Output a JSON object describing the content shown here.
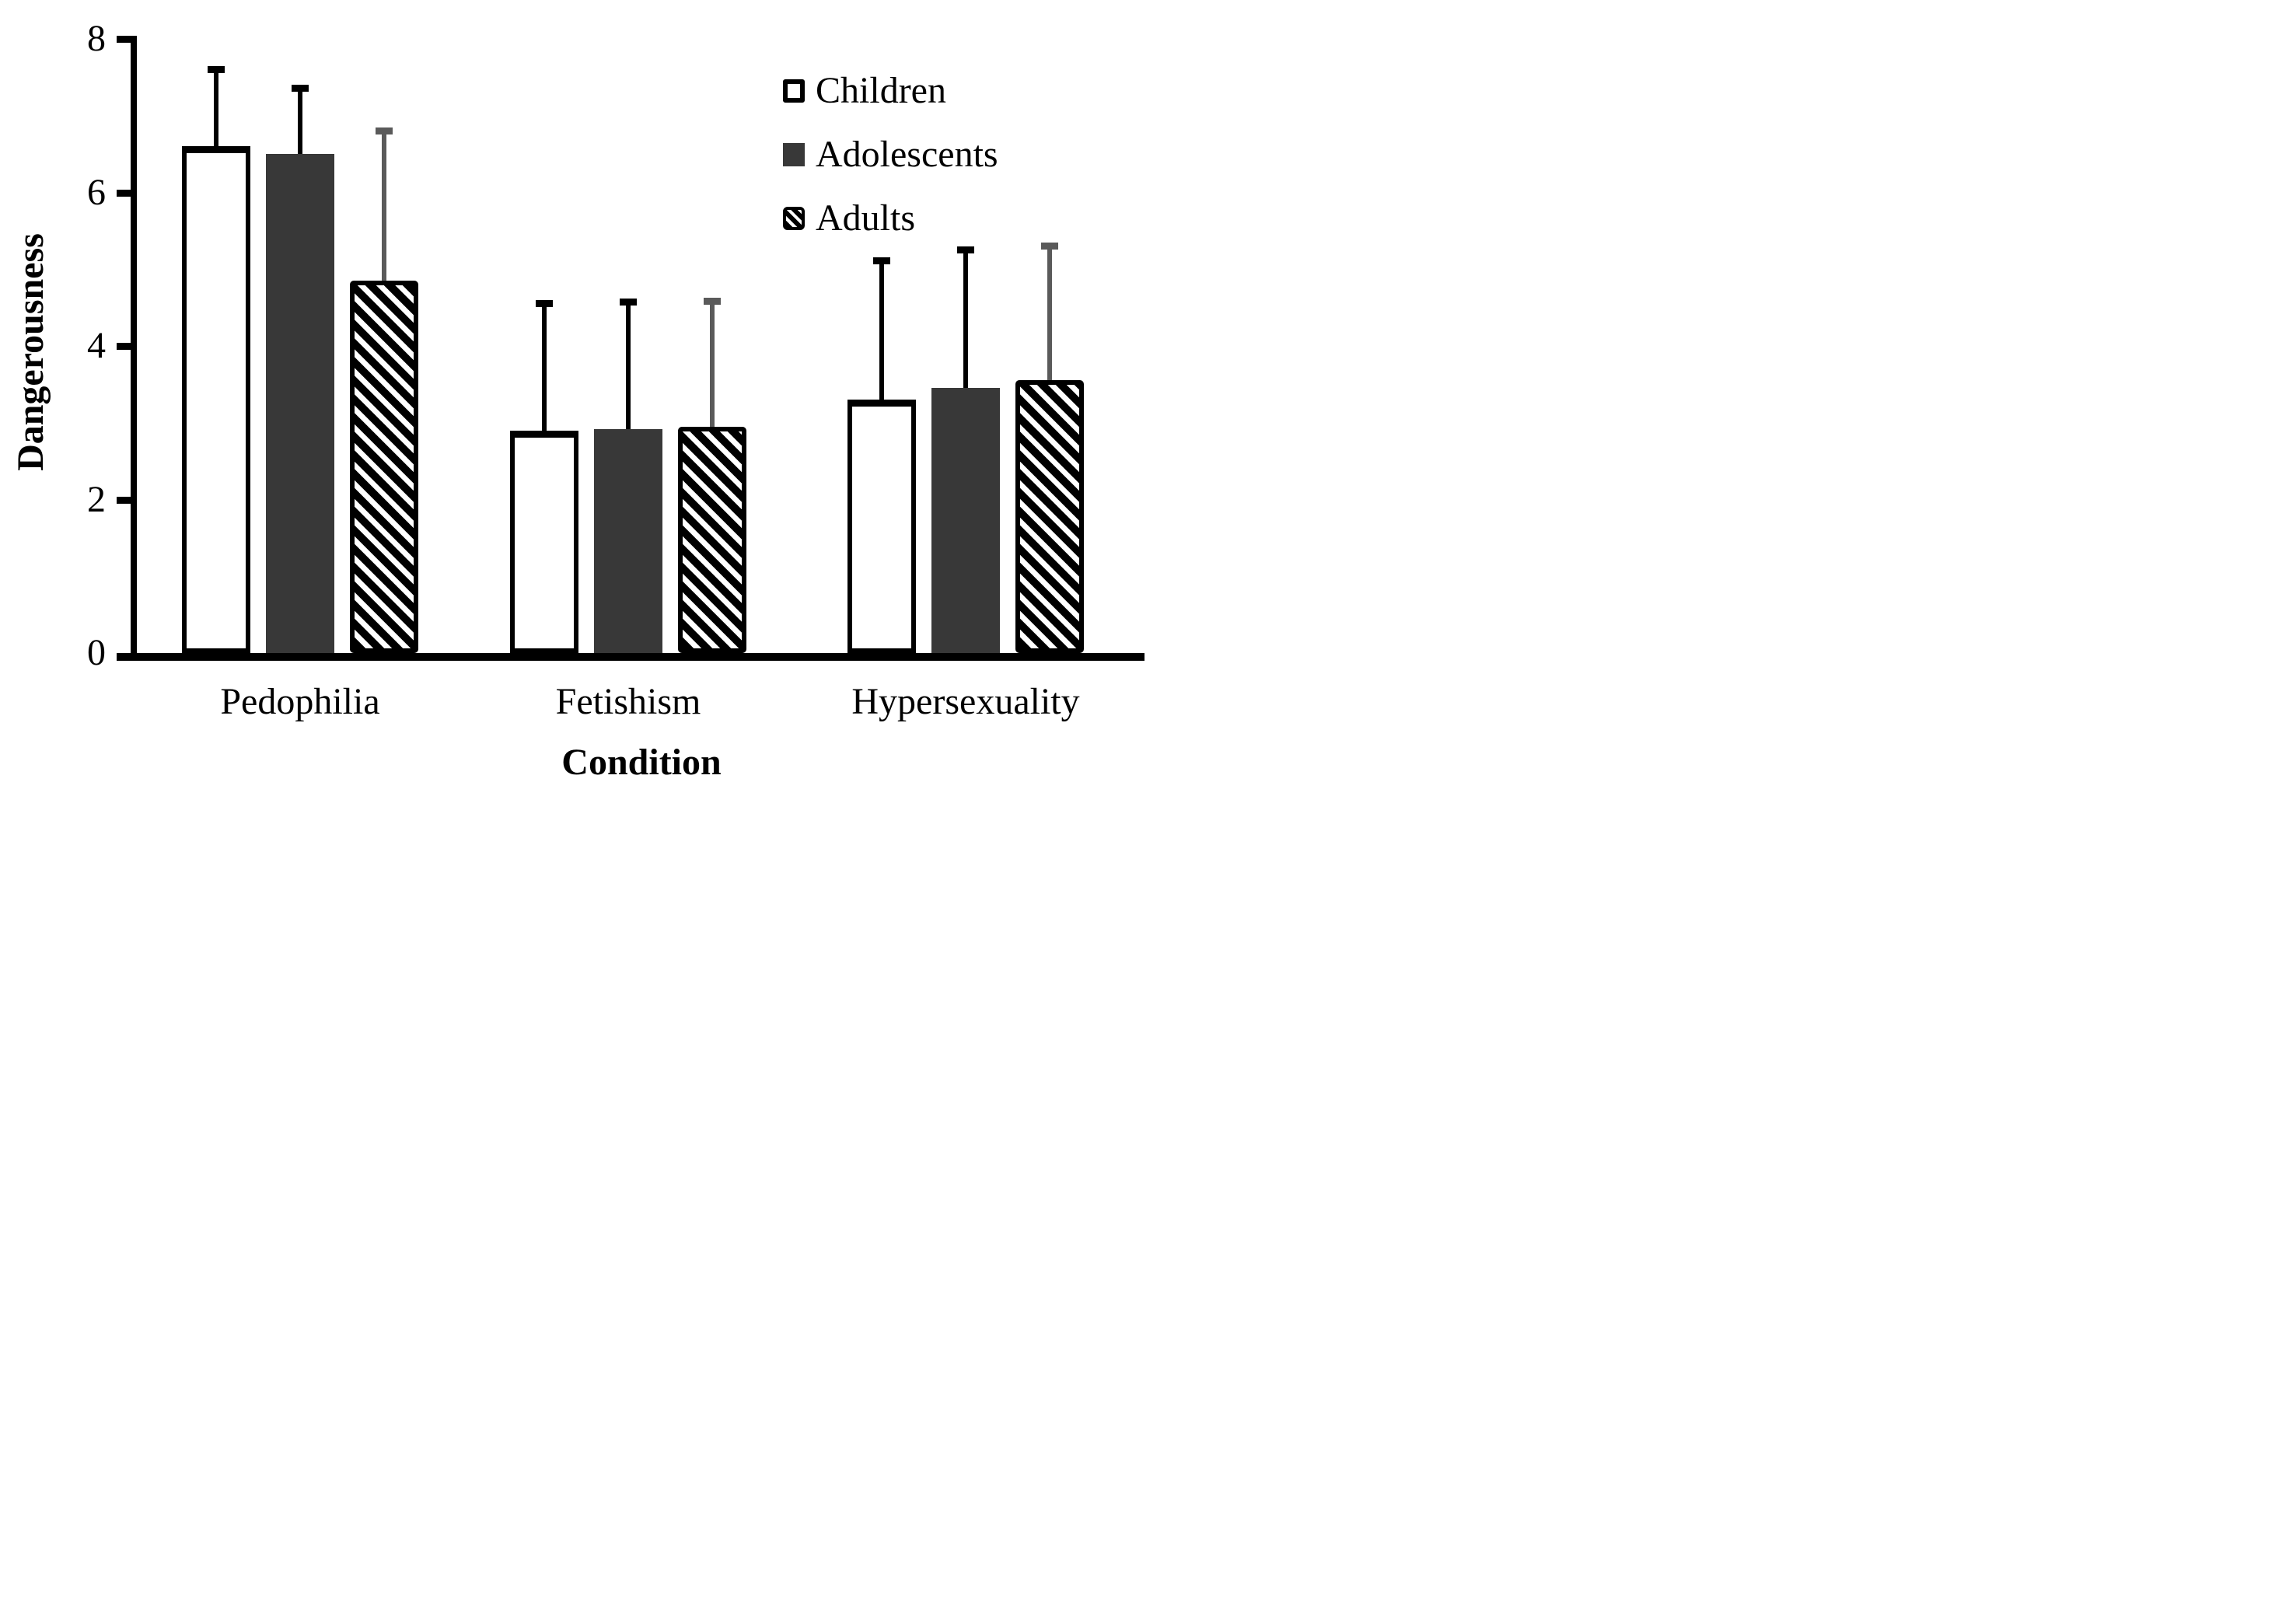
{
  "figure": {
    "background": "#ffffff"
  },
  "axes": {
    "y": {
      "label": "Dangerousness",
      "min": 0,
      "max": 8,
      "tick_labels": [
        "0",
        "2",
        "4",
        "6",
        "8"
      ]
    },
    "x": {
      "label": "Condition",
      "categories": [
        "Pedophilia",
        "Fetishism",
        "Hypersexuality"
      ]
    }
  },
  "legend": {
    "items": [
      {
        "label": "Children",
        "swatch": "open-white-square"
      },
      {
        "label": "Adolescents",
        "swatch": "solid-dark-gray-square"
      },
      {
        "label": "Adults",
        "swatch": "black-white-diagonal-hatch-square"
      }
    ]
  },
  "colors": {
    "bar_outline": "#000000",
    "bar_dark_fill": "#383838",
    "adults_error_bar": "#5a5a5a",
    "error_bar": "#000000",
    "text": "#000000",
    "background": "#ffffff"
  },
  "chart_data": {
    "type": "bar",
    "title": "",
    "xlabel": "Condition",
    "ylabel": "Dangerousness",
    "ylim": [
      0,
      8
    ],
    "yticks": [
      0,
      2,
      4,
      6,
      8
    ],
    "grid": false,
    "legend_position": "upper-right-inside",
    "error_bars": "upper-only",
    "categories": [
      "Pedophilia",
      "Fetishism",
      "Hypersexuality"
    ],
    "series": [
      {
        "name": "Children",
        "fill": "white-open",
        "values": [
          6.6,
          2.9,
          3.3
        ],
        "error_upper": [
          1.05,
          1.7,
          1.85
        ]
      },
      {
        "name": "Adolescents",
        "fill": "dark-gray",
        "values": [
          6.5,
          2.92,
          3.45
        ],
        "error_upper": [
          0.9,
          1.7,
          1.85
        ]
      },
      {
        "name": "Adults",
        "fill": "diagonal-hatch",
        "values": [
          4.85,
          2.95,
          3.55
        ],
        "error_upper": [
          2.0,
          1.68,
          1.8
        ]
      }
    ]
  }
}
